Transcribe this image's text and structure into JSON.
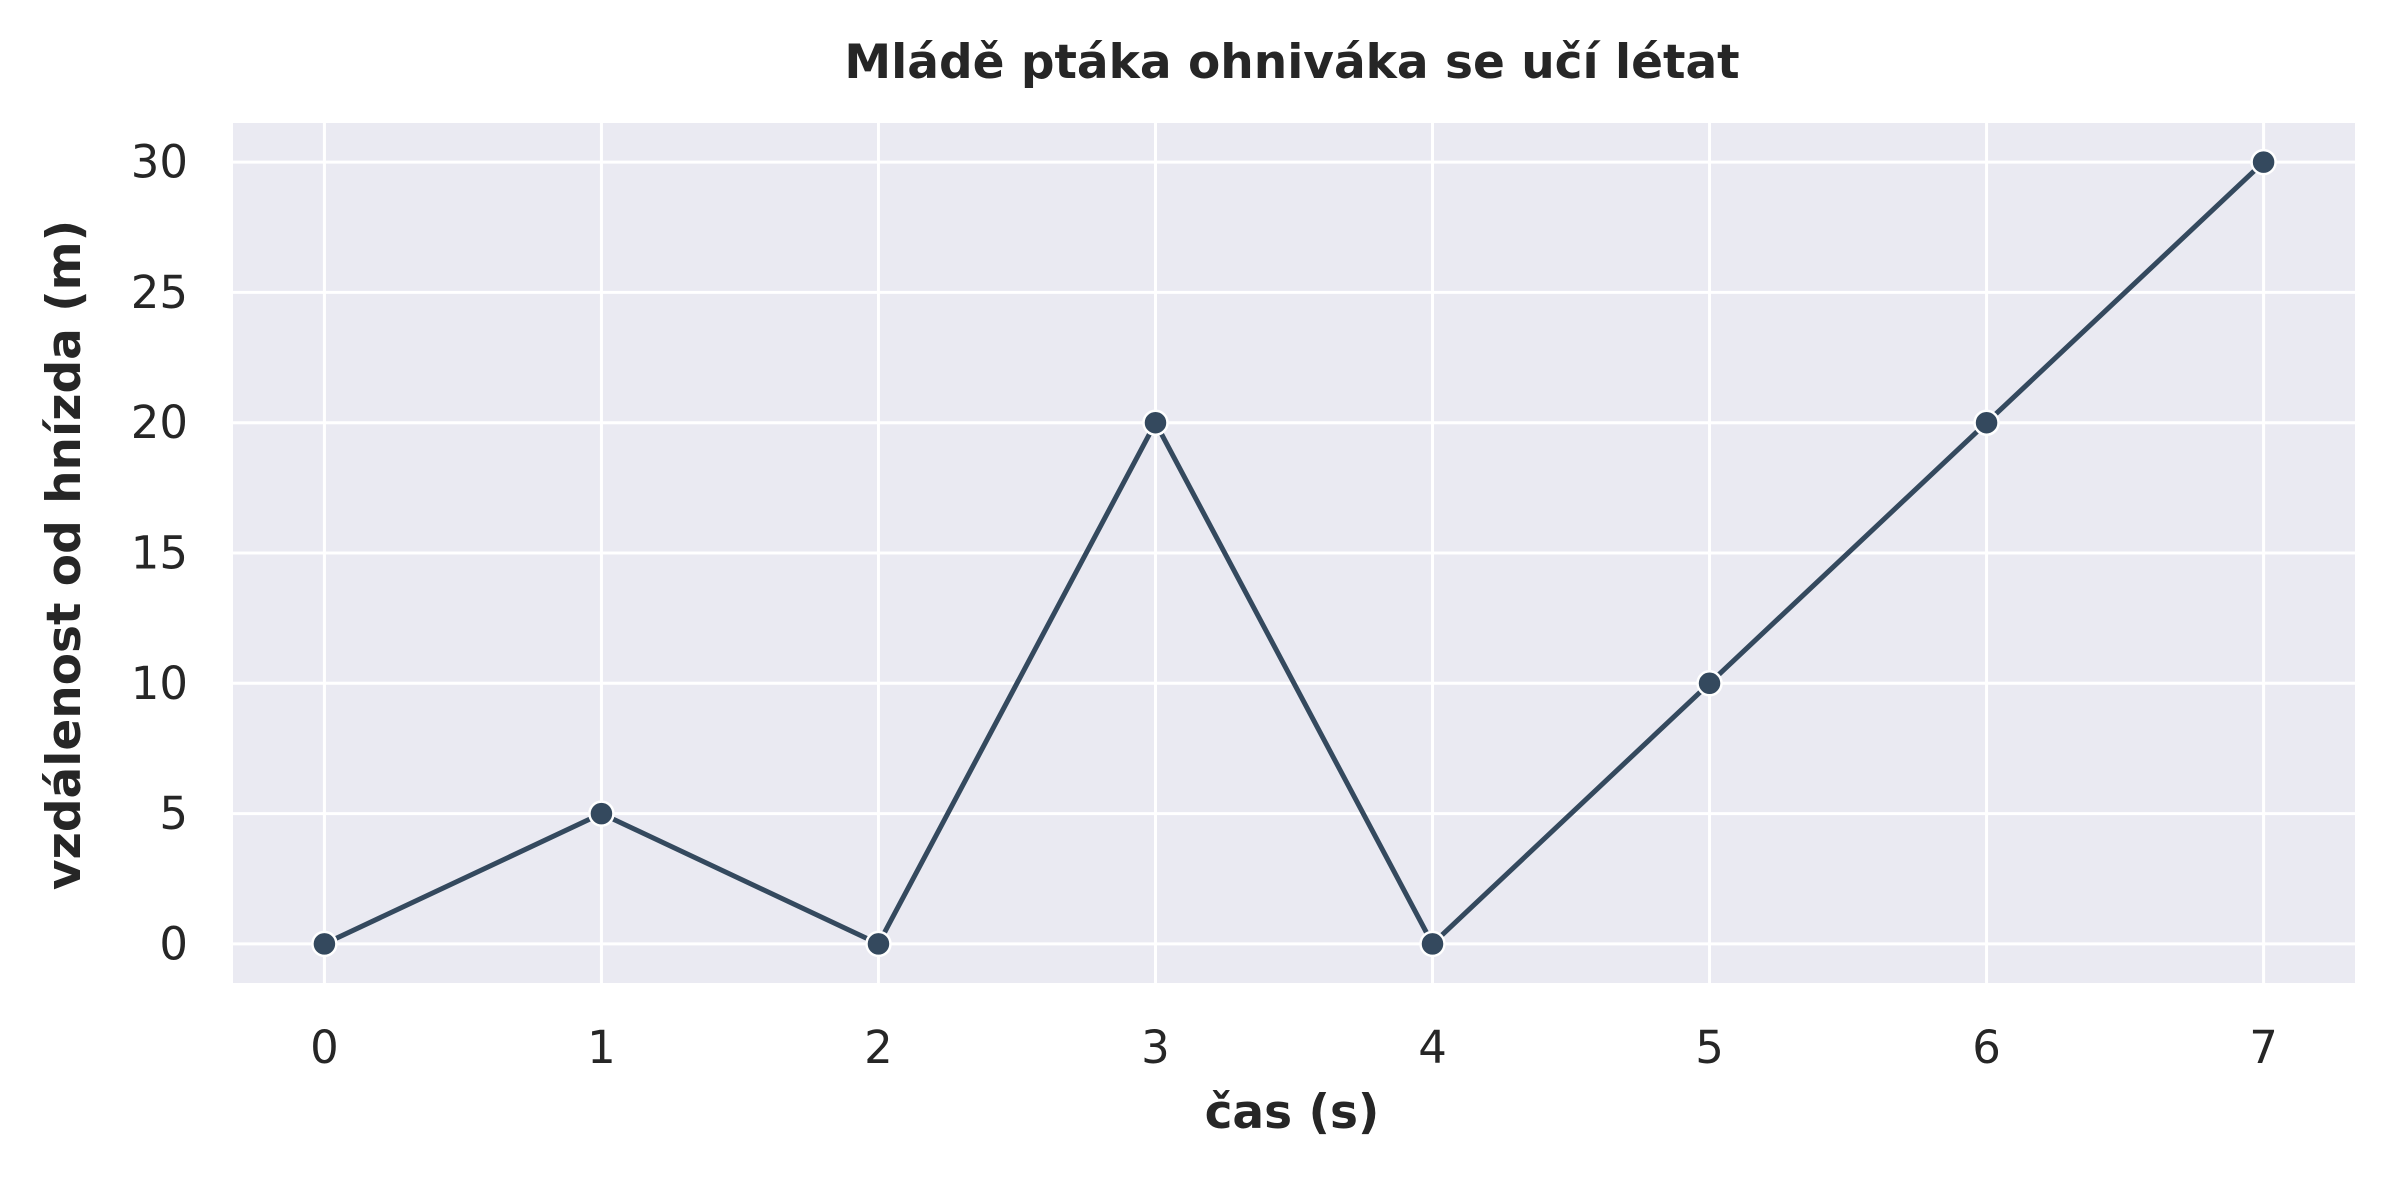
{
  "chart_data": {
    "type": "line",
    "title": "Mládě ptáka ohniváka se učí létat",
    "xlabel": "čas (s)",
    "ylabel": "vzdálenost od hnízda (m)",
    "x": [
      0,
      1,
      2,
      3,
      4,
      5,
      6,
      7
    ],
    "series": [
      {
        "values": [
          0,
          5,
          0,
          20,
          0,
          10,
          20,
          30
        ],
        "color": "#34495e",
        "marker": "circle"
      }
    ],
    "xlim": [
      -0.33,
      7.33
    ],
    "ylim": [
      -1.5,
      31.5
    ],
    "xticks": [
      0,
      1,
      2,
      3,
      4,
      5,
      6,
      7
    ],
    "yticks": [
      0,
      5,
      10,
      15,
      20,
      25,
      30
    ],
    "grid": true,
    "background_color": "#eaeaf2",
    "grid_color": "#ffffff"
  }
}
